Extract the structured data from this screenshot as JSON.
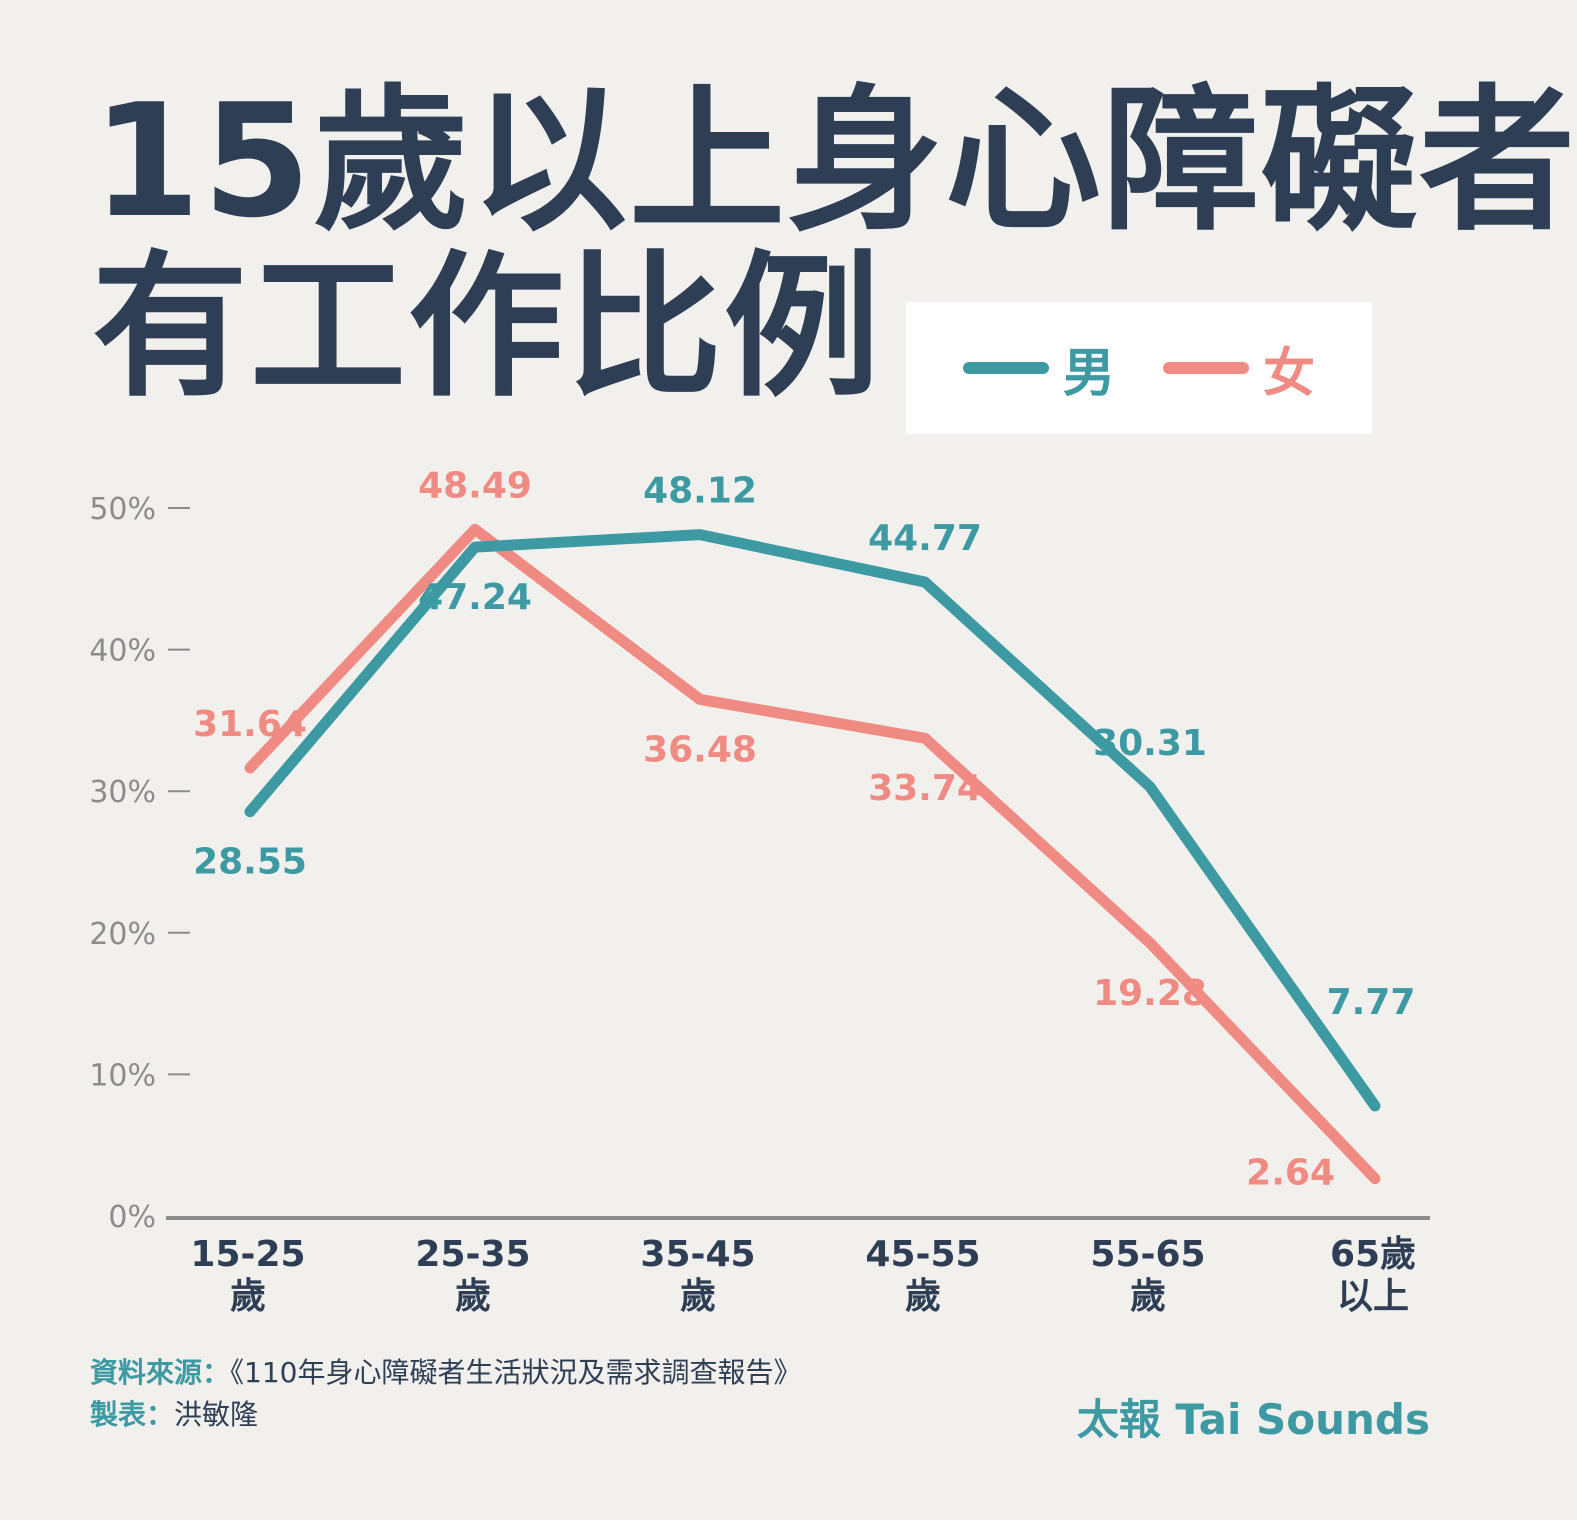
{
  "title": {
    "line1": "15歲以上身心障礙者",
    "line2": "有工作比例"
  },
  "chart_data": {
    "type": "line",
    "categories": [
      [
        "15-25",
        "歲"
      ],
      [
        "25-35",
        "歲"
      ],
      [
        "35-45",
        "歲"
      ],
      [
        "45-55",
        "歲"
      ],
      [
        "55-65",
        "歲"
      ],
      [
        "65歲",
        "以上"
      ]
    ],
    "ylim": [
      0,
      50
    ],
    "yticks": [
      {
        "value": 0,
        "label": "0%"
      },
      {
        "value": 10,
        "label": "10%"
      },
      {
        "value": 20,
        "label": "20%"
      },
      {
        "value": 30,
        "label": "30%"
      },
      {
        "value": 40,
        "label": "40%"
      },
      {
        "value": 50,
        "label": "50%"
      }
    ],
    "series": [
      {
        "name": "男",
        "color": "#3d9aa3",
        "values": [
          28.55,
          47.24,
          48.12,
          44.77,
          30.31,
          7.77
        ],
        "labels": [
          "28.55",
          "47.24",
          "48.12",
          "44.77",
          "30.31",
          "7.77"
        ],
        "label_positions": [
          "below",
          "below",
          "above",
          "above",
          "above",
          "above"
        ]
      },
      {
        "name": "女",
        "color": "#f08b83",
        "values": [
          31.64,
          48.49,
          36.48,
          33.74,
          19.28,
          2.64
        ],
        "labels": [
          "31.64",
          "48.49",
          "36.48",
          "33.74",
          "19.28",
          "2.64"
        ],
        "label_positions": [
          "above",
          "above",
          "below",
          "below",
          "below",
          "left"
        ]
      }
    ],
    "legend": "top-right",
    "grid": false
  },
  "footer": {
    "source_label": "資料來源：",
    "source_text": "《110年身心障礙者生活狀況及需求調查報告》",
    "maker_label": "製表：",
    "maker_text": "洪敏隆",
    "brand": "太報 Tai Sounds"
  }
}
